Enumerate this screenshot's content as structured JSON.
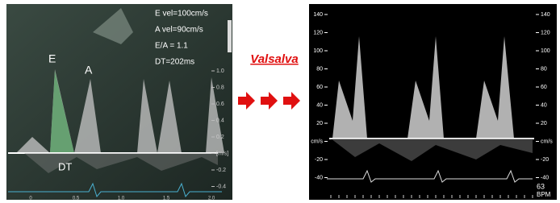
{
  "left_panel": {
    "measurements": [
      "E vel=100cm/s",
      "A vel=90cm/s",
      "E/A = 1.1",
      "DT=202ms"
    ],
    "peak_e": "E",
    "peak_a": "A",
    "dt_label": "DT",
    "scale": [
      "1.0",
      "0.8",
      "0.6",
      "0.4",
      "0.2",
      "[m/s]",
      "-0.2",
      "-0.4"
    ],
    "time_axis": [
      "0",
      "0.5",
      "1.0",
      "1.5",
      "2.0"
    ]
  },
  "transition": {
    "label": "Valsalva"
  },
  "right_panel": {
    "scale": [
      140,
      120,
      100,
      80,
      60,
      40,
      20,
      "cm/s",
      -20,
      -40
    ],
    "heart_rate": "63",
    "heart_rate_unit": "BPM"
  }
}
